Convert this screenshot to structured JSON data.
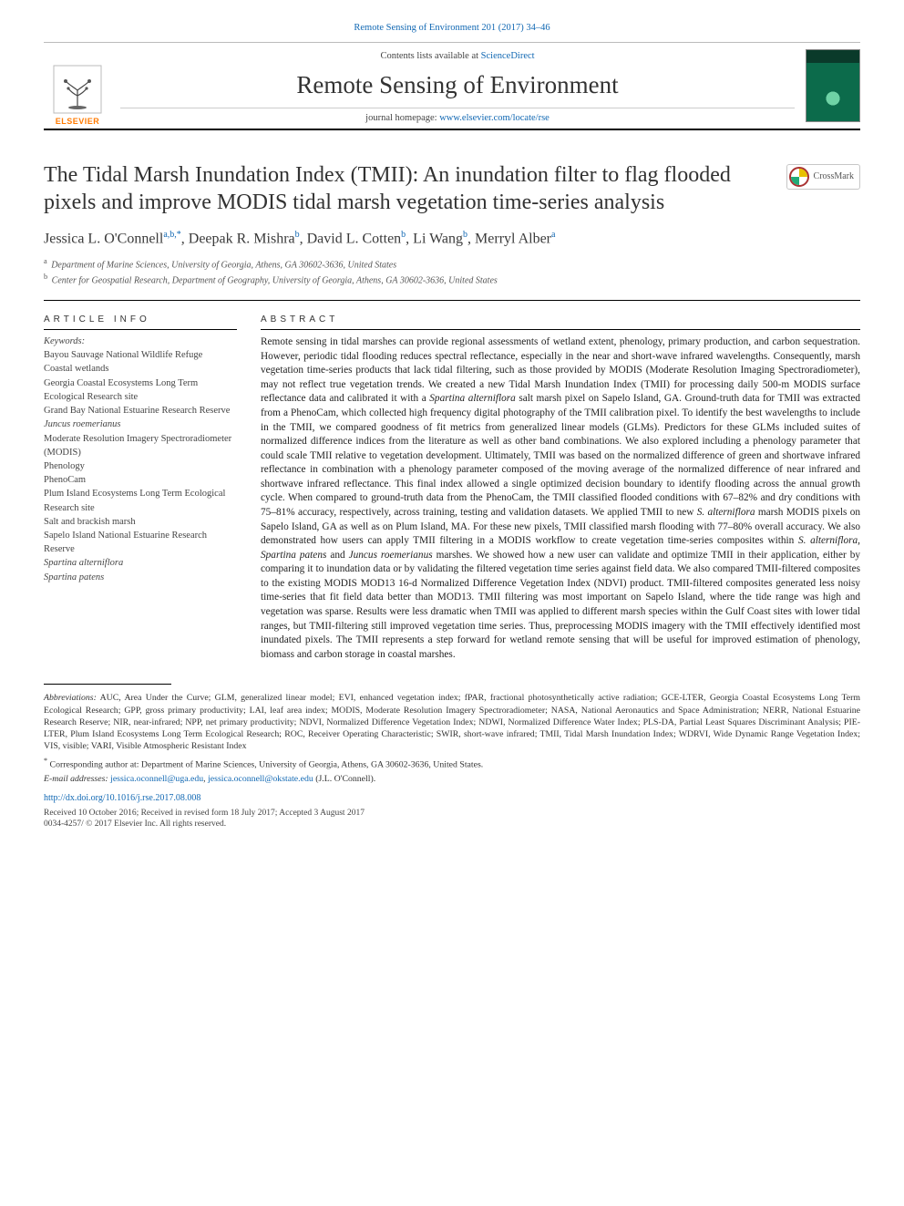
{
  "journal_link_top": "Remote Sensing of Environment 201 (2017) 34–46",
  "masthead": {
    "contents_prefix": "Contents lists available at ",
    "contents_link": "ScienceDirect",
    "journal_title": "Remote Sensing of Environment",
    "homepage_prefix": "journal homepage: ",
    "homepage_link": "www.elsevier.com/locate/rse",
    "publisher_logo_text": "ELSEVIER"
  },
  "crossmark_label": "CrossMark",
  "article_title": "The Tidal Marsh Inundation Index (TMII): An inundation filter to flag flooded pixels and improve MODIS tidal marsh vegetation time-series analysis",
  "authors_html": "Jessica L. O'Connell<sup>a,b,*</sup>, Deepak R. Mishra<sup>b</sup>, David L. Cotten<sup>b</sup>, Li Wang<sup>b</sup>, Merryl Alber<sup>a</sup>",
  "affiliations": [
    {
      "sup": "a",
      "text": "Department of Marine Sciences, University of Georgia, Athens, GA 30602-3636, United States"
    },
    {
      "sup": "b",
      "text": "Center for Geospatial Research, Department of Geography, University of Georgia, Athens, GA 30602-3636, United States"
    }
  ],
  "headings": {
    "article_info": "ARTICLE INFO",
    "abstract": "ABSTRACT"
  },
  "keywords_label": "Keywords:",
  "keywords": [
    "Bayou Sauvage National Wildlife Refuge",
    "Coastal wetlands",
    "Georgia Coastal Ecosystems Long Term Ecological Research site",
    "Grand Bay National Estuarine Research Reserve",
    {
      "text": "Juncus roemerianus",
      "italic": true
    },
    "Moderate Resolution Imagery Spectroradiometer (MODIS)",
    "Phenology",
    "PhenoCam",
    "Plum Island Ecosystems Long Term Ecological Research site",
    "Salt and brackish marsh",
    "Sapelo Island National Estuarine Research Reserve",
    {
      "text": "Spartina alterniflora",
      "italic": true
    },
    {
      "text": "Spartina patens",
      "italic": true
    }
  ],
  "abstract": "Remote sensing in tidal marshes can provide regional assessments of wetland extent, phenology, primary production, and carbon sequestration. However, periodic tidal flooding reduces spectral reflectance, especially in the near and short-wave infrared wavelengths. Consequently, marsh vegetation time-series products that lack tidal filtering, such as those provided by MODIS (Moderate Resolution Imaging Spectroradiometer), may not reflect true vegetation trends. We created a new Tidal Marsh Inundation Index (TMII) for processing daily 500-m MODIS surface reflectance data and calibrated it with a Spartina alterniflora salt marsh pixel on Sapelo Island, GA. Ground-truth data for TMII was extracted from a PhenoCam, which collected high frequency digital photography of the TMII calibration pixel. To identify the best wavelengths to include in the TMII, we compared goodness of fit metrics from generalized linear models (GLMs). Predictors for these GLMs included suites of normalized difference indices from the literature as well as other band combinations. We also explored including a phenology parameter that could scale TMII relative to vegetation development. Ultimately, TMII was based on the normalized difference of green and shortwave infrared reflectance in combination with a phenology parameter composed of the moving average of the normalized difference of near infrared and shortwave infrared reflectance. This final index allowed a single optimized decision boundary to identify flooding across the annual growth cycle. When compared to ground-truth data from the PhenoCam, the TMII classified flooded conditions with 67–82% and dry conditions with 75–81% accuracy, respectively, across training, testing and validation datasets. We applied TMII to new S. alterniflora marsh MODIS pixels on Sapelo Island, GA as well as on Plum Island, MA. For these new pixels, TMII classified marsh flooding with 77–80% overall accuracy. We also demonstrated how users can apply TMII filtering in a MODIS workflow to create vegetation time-series composites within S. alterniflora, Spartina patens and Juncus roemerianus marshes. We showed how a new user can validate and optimize TMII in their application, either by comparing it to inundation data or by validating the filtered vegetation time series against field data. We also compared TMII-filtered composites to the existing MODIS MOD13 16-d Normalized Difference Vegetation Index (NDVI) product. TMII-filtered composites generated less noisy time-series that fit field data better than MOD13. TMII filtering was most important on Sapelo Island, where the tide range was high and vegetation was sparse. Results were less dramatic when TMII was applied to different marsh species within the Gulf Coast sites with lower tidal ranges, but TMII-filtering still improved vegetation time series. Thus, preprocessing MODIS imagery with the TMII effectively identified most inundated pixels. The TMII represents a step forward for wetland remote sensing that will be useful for improved estimation of phenology, biomass and carbon storage in coastal marshes.",
  "abbrev_label": "Abbreviations:",
  "abbreviations": "AUC, Area Under the Curve; GLM, generalized linear model; EVI, enhanced vegetation index; fPAR, fractional photosynthetically active radiation; GCE-LTER, Georgia Coastal Ecosystems Long Term Ecological Research; GPP, gross primary productivity; LAI, leaf area index; MODIS, Moderate Resolution Imagery Spectroradiometer; NASA, National Aeronautics and Space Administration; NERR, National Estuarine Research Reserve; NIR, near-infrared; NPP, net primary productivity; NDVI, Normalized Difference Vegetation Index; NDWI, Normalized Difference Water Index; PLS-DA, Partial Least Squares Discriminant Analysis; PIE-LTER, Plum Island Ecosystems Long Term Ecological Research; ROC, Receiver Operating Characteristic; SWIR, short-wave infrared; TMII, Tidal Marsh Inundation Index; WDRVI, Wide Dynamic Range Vegetation Index; VIS, visible; VARI, Visible Atmospheric Resistant Index",
  "corresponding": "Corresponding author at: Department of Marine Sciences, University of Georgia, Athens, GA 30602-3636, United States.",
  "email_label": "E-mail addresses:",
  "emails": [
    "jessica.oconnell@uga.edu",
    "jessica.oconnell@okstate.edu"
  ],
  "email_paren": "(J.L. O'Connell).",
  "doi": "http://dx.doi.org/10.1016/j.rse.2017.08.008",
  "history": "Received 10 October 2016; Received in revised form 18 July 2017; Accepted 3 August 2017",
  "copyright": "0034-4257/ © 2017 Elsevier Inc. All rights reserved.",
  "colors": {
    "link": "#1168b3",
    "elsevier_orange": "#ff7a00",
    "rule": "#000000",
    "text": "#222222"
  }
}
